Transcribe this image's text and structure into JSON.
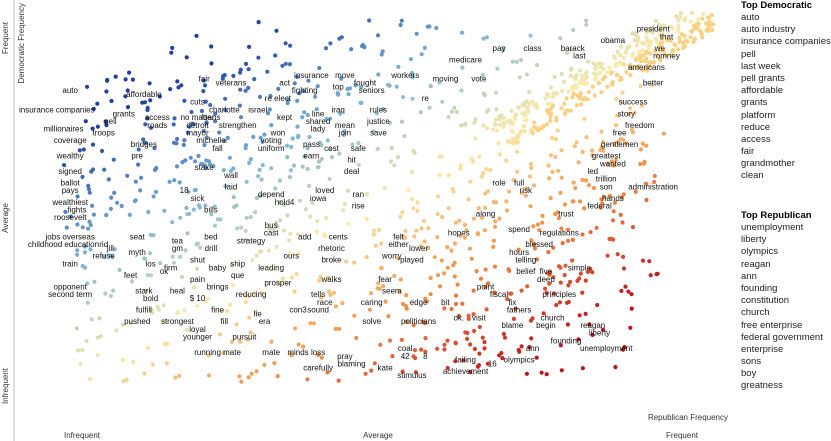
{
  "chart_data": {
    "type": "scatter",
    "xlabel": "Republican Frequency",
    "ylabel": "Democratic Frequency",
    "x_ticks": [
      "Infrequent",
      "Average",
      "Frequent"
    ],
    "y_ticks": [
      "Infrequent",
      "Average",
      "Frequent"
    ],
    "side_panel": {
      "democratic_title": "Top Democratic",
      "democratic_terms": [
        "auto",
        "auto industry",
        "insurance companies",
        "pell",
        "last week",
        "pell grants",
        "affordable",
        "grants",
        "platform",
        "reduce",
        "access",
        "fair",
        "grandmother",
        "clean"
      ],
      "republican_title": "Top Republican",
      "republican_terms": [
        "unemployment",
        "liberty",
        "olympics",
        "reagan",
        "ann",
        "founding",
        "constitution",
        "church",
        "free enterprise",
        "federal government",
        "enterprise",
        "sons",
        "boy",
        "greatness"
      ]
    },
    "labels": [
      {
        "t": "president",
        "x": 0.93,
        "y": 0.97
      },
      {
        "t": "that",
        "x": 0.95,
        "y": 0.95
      },
      {
        "t": "obama",
        "x": 0.87,
        "y": 0.94
      },
      {
        "t": "we",
        "x": 0.94,
        "y": 0.92
      },
      {
        "t": "barack",
        "x": 0.81,
        "y": 0.92
      },
      {
        "t": "last",
        "x": 0.82,
        "y": 0.9
      },
      {
        "t": "romney",
        "x": 0.95,
        "y": 0.9
      },
      {
        "t": "pay",
        "x": 0.7,
        "y": 0.92
      },
      {
        "t": "class",
        "x": 0.75,
        "y": 0.92
      },
      {
        "t": "medicare",
        "x": 0.65,
        "y": 0.89
      },
      {
        "t": "americans",
        "x": 0.92,
        "y": 0.87
      },
      {
        "t": "better",
        "x": 0.93,
        "y": 0.83
      },
      {
        "t": "moving",
        "x": 0.62,
        "y": 0.84
      },
      {
        "t": "vote",
        "x": 0.67,
        "y": 0.84
      },
      {
        "t": "workers",
        "x": 0.56,
        "y": 0.85
      },
      {
        "t": "fought",
        "x": 0.5,
        "y": 0.83
      },
      {
        "t": "seniors",
        "x": 0.51,
        "y": 0.81
      },
      {
        "t": "move",
        "x": 0.47,
        "y": 0.85
      },
      {
        "t": "insurance",
        "x": 0.42,
        "y": 0.85
      },
      {
        "t": "top",
        "x": 0.46,
        "y": 0.82
      },
      {
        "t": "re",
        "x": 0.59,
        "y": 0.79
      },
      {
        "t": "act",
        "x": 0.38,
        "y": 0.83
      },
      {
        "t": "fighting",
        "x": 0.41,
        "y": 0.81
      },
      {
        "t": "re elect",
        "x": 0.37,
        "y": 0.79
      },
      {
        "t": "fair",
        "x": 0.26,
        "y": 0.84
      },
      {
        "t": "veterans",
        "x": 0.3,
        "y": 0.83
      },
      {
        "t": "affordable",
        "x": 0.17,
        "y": 0.8
      },
      {
        "t": "cuts",
        "x": 0.25,
        "y": 0.78
      },
      {
        "t": "charlotte",
        "x": 0.29,
        "y": 0.76
      },
      {
        "t": "israel",
        "x": 0.34,
        "y": 0.76
      },
      {
        "t": "iraq",
        "x": 0.46,
        "y": 0.76
      },
      {
        "t": "rules",
        "x": 0.52,
        "y": 0.76
      },
      {
        "t": "line",
        "x": 0.43,
        "y": 0.75
      },
      {
        "t": "justice",
        "x": 0.52,
        "y": 0.73
      },
      {
        "t": "success",
        "x": 0.9,
        "y": 0.78
      },
      {
        "t": "story",
        "x": 0.89,
        "y": 0.75
      },
      {
        "t": "auto",
        "x": 0.06,
        "y": 0.81
      },
      {
        "t": "insurance companies",
        "x": 0.04,
        "y": 0.76
      },
      {
        "t": "grants",
        "x": 0.14,
        "y": 0.75
      },
      {
        "t": "pell",
        "x": 0.12,
        "y": 0.73
      },
      {
        "t": "access",
        "x": 0.19,
        "y": 0.74
      },
      {
        "t": "roads",
        "x": 0.19,
        "y": 0.72
      },
      {
        "t": "no matter",
        "x": 0.25,
        "y": 0.74
      },
      {
        "t": "loans",
        "x": 0.27,
        "y": 0.74
      },
      {
        "t": "detroit",
        "x": 0.25,
        "y": 0.72
      },
      {
        "t": "mayor",
        "x": 0.25,
        "y": 0.7
      },
      {
        "t": "strengthen",
        "x": 0.31,
        "y": 0.72
      },
      {
        "t": "kept",
        "x": 0.38,
        "y": 0.74
      },
      {
        "t": "shared",
        "x": 0.43,
        "y": 0.73
      },
      {
        "t": "lady",
        "x": 0.43,
        "y": 0.71
      },
      {
        "t": "join",
        "x": 0.47,
        "y": 0.7
      },
      {
        "t": "mean",
        "x": 0.47,
        "y": 0.72
      },
      {
        "t": "save",
        "x": 0.52,
        "y": 0.7
      },
      {
        "t": "freedom",
        "x": 0.91,
        "y": 0.72
      },
      {
        "t": "free",
        "x": 0.88,
        "y": 0.7
      },
      {
        "t": "gentlemen",
        "x": 0.88,
        "y": 0.67
      },
      {
        "t": "millionaires",
        "x": 0.05,
        "y": 0.71
      },
      {
        "t": "troops",
        "x": 0.11,
        "y": 0.7
      },
      {
        "t": "coverage",
        "x": 0.06,
        "y": 0.68
      },
      {
        "t": "bridges",
        "x": 0.17,
        "y": 0.67
      },
      {
        "t": "won",
        "x": 0.37,
        "y": 0.7
      },
      {
        "t": "voting",
        "x": 0.36,
        "y": 0.68
      },
      {
        "t": "uniform",
        "x": 0.36,
        "y": 0.66
      },
      {
        "t": "michelle",
        "x": 0.27,
        "y": 0.68
      },
      {
        "t": "fall",
        "x": 0.28,
        "y": 0.66
      },
      {
        "t": "pass",
        "x": 0.42,
        "y": 0.67
      },
      {
        "t": "cost",
        "x": 0.45,
        "y": 0.66
      },
      {
        "t": "safe",
        "x": 0.49,
        "y": 0.66
      },
      {
        "t": "wealthy",
        "x": 0.06,
        "y": 0.64
      },
      {
        "t": "pre",
        "x": 0.16,
        "y": 0.64
      },
      {
        "t": "earn",
        "x": 0.42,
        "y": 0.64
      },
      {
        "t": "greatest",
        "x": 0.86,
        "y": 0.64
      },
      {
        "t": "wanted",
        "x": 0.87,
        "y": 0.62
      },
      {
        "t": "signed",
        "x": 0.06,
        "y": 0.6
      },
      {
        "t": "stake",
        "x": 0.26,
        "y": 0.61
      },
      {
        "t": "hit",
        "x": 0.48,
        "y": 0.63
      },
      {
        "t": "deal",
        "x": 0.48,
        "y": 0.6
      },
      {
        "t": "led",
        "x": 0.84,
        "y": 0.6
      },
      {
        "t": "wall",
        "x": 0.3,
        "y": 0.59
      },
      {
        "t": "trillion",
        "x": 0.86,
        "y": 0.58
      },
      {
        "t": "ballot",
        "x": 0.06,
        "y": 0.57
      },
      {
        "t": "laid",
        "x": 0.3,
        "y": 0.56
      },
      {
        "t": "role",
        "x": 0.7,
        "y": 0.57
      },
      {
        "t": "full",
        "x": 0.73,
        "y": 0.57
      },
      {
        "t": "administration",
        "x": 0.93,
        "y": 0.56
      },
      {
        "t": "son",
        "x": 0.86,
        "y": 0.56
      },
      {
        "t": "pays",
        "x": 0.06,
        "y": 0.55
      },
      {
        "t": "18",
        "x": 0.23,
        "y": 0.55
      },
      {
        "t": "depend",
        "x": 0.36,
        "y": 0.54
      },
      {
        "t": "loved",
        "x": 0.44,
        "y": 0.55
      },
      {
        "t": "risk",
        "x": 0.74,
        "y": 0.55
      },
      {
        "t": "ran",
        "x": 0.49,
        "y": 0.54
      },
      {
        "t": "sick",
        "x": 0.25,
        "y": 0.53
      },
      {
        "t": "iowa",
        "x": 0.43,
        "y": 0.53
      },
      {
        "t": "hold4",
        "x": 0.38,
        "y": 0.52
      },
      {
        "t": "hands",
        "x": 0.87,
        "y": 0.53
      },
      {
        "t": "federal",
        "x": 0.85,
        "y": 0.51
      },
      {
        "t": "wealthiest",
        "x": 0.06,
        "y": 0.52
      },
      {
        "t": "rise",
        "x": 0.49,
        "y": 0.51
      },
      {
        "t": "fights",
        "x": 0.07,
        "y": 0.5
      },
      {
        "t": "bills",
        "x": 0.27,
        "y": 0.5
      },
      {
        "t": "trust",
        "x": 0.8,
        "y": 0.49
      },
      {
        "t": "roosevelt",
        "x": 0.06,
        "y": 0.48
      },
      {
        "t": "along",
        "x": 0.68,
        "y": 0.49
      },
      {
        "t": "bus",
        "x": 0.36,
        "y": 0.46
      },
      {
        "t": "spend",
        "x": 0.73,
        "y": 0.45
      },
      {
        "t": "regulations",
        "x": 0.79,
        "y": 0.44
      },
      {
        "t": "cast",
        "x": 0.36,
        "y": 0.44
      },
      {
        "t": "hopes",
        "x": 0.64,
        "y": 0.44
      },
      {
        "t": "seat",
        "x": 0.16,
        "y": 0.43
      },
      {
        "t": "add",
        "x": 0.41,
        "y": 0.43
      },
      {
        "t": "cents",
        "x": 0.46,
        "y": 0.43
      },
      {
        "t": "felt",
        "x": 0.55,
        "y": 0.43
      },
      {
        "t": "bed",
        "x": 0.27,
        "y": 0.43
      },
      {
        "t": "jobs overseas",
        "x": 0.06,
        "y": 0.43
      },
      {
        "t": "childhood education",
        "x": 0.05,
        "y": 0.41
      },
      {
        "t": "rid",
        "x": 0.11,
        "y": 0.41
      },
      {
        "t": "tea",
        "x": 0.22,
        "y": 0.42
      },
      {
        "t": "strategy",
        "x": 0.33,
        "y": 0.42
      },
      {
        "t": "either",
        "x": 0.55,
        "y": 0.41
      },
      {
        "t": "blessed",
        "x": 0.76,
        "y": 0.41
      },
      {
        "t": "gm",
        "x": 0.22,
        "y": 0.4
      },
      {
        "t": "drill",
        "x": 0.27,
        "y": 0.4
      },
      {
        "t": "lower",
        "x": 0.58,
        "y": 0.4
      },
      {
        "t": "rhetoric",
        "x": 0.45,
        "y": 0.4
      },
      {
        "t": "myth",
        "x": 0.16,
        "y": 0.39
      },
      {
        "t": "hours",
        "x": 0.73,
        "y": 0.39
      },
      {
        "t": "worry",
        "x": 0.54,
        "y": 0.38
      },
      {
        "t": "played",
        "x": 0.57,
        "y": 0.37
      },
      {
        "t": "ours",
        "x": 0.39,
        "y": 0.38
      },
      {
        "t": "broke",
        "x": 0.45,
        "y": 0.37
      },
      {
        "t": "shut",
        "x": 0.25,
        "y": 0.37
      },
      {
        "t": "telling",
        "x": 0.74,
        "y": 0.37
      },
      {
        "t": "los",
        "x": 0.18,
        "y": 0.36
      },
      {
        "t": "firm",
        "x": 0.21,
        "y": 0.35
      },
      {
        "t": "baby",
        "x": 0.28,
        "y": 0.35
      },
      {
        "t": "ship",
        "x": 0.31,
        "y": 0.36
      },
      {
        "t": "leading",
        "x": 0.36,
        "y": 0.35
      },
      {
        "t": "train",
        "x": 0.06,
        "y": 0.36
      },
      {
        "t": "feet",
        "x": 0.15,
        "y": 0.33
      },
      {
        "t": "ok",
        "x": 0.2,
        "y": 0.34
      },
      {
        "t": "five",
        "x": 0.77,
        "y": 0.34
      },
      {
        "t": "simple",
        "x": 0.82,
        "y": 0.35
      },
      {
        "t": "refuse",
        "x": 0.11,
        "y": 0.38
      },
      {
        "t": "jill",
        "x": 0.12,
        "y": 0.4
      },
      {
        "t": "que",
        "x": 0.31,
        "y": 0.33
      },
      {
        "t": "belief",
        "x": 0.74,
        "y": 0.34
      },
      {
        "t": "pain",
        "x": 0.25,
        "y": 0.32
      },
      {
        "t": "fear",
        "x": 0.53,
        "y": 0.32
      },
      {
        "t": "walks",
        "x": 0.45,
        "y": 0.32
      },
      {
        "t": "deep",
        "x": 0.77,
        "y": 0.32
      },
      {
        "t": "opponent",
        "x": 0.06,
        "y": 0.3
      },
      {
        "t": "second term",
        "x": 0.06,
        "y": 0.28
      },
      {
        "t": "brings",
        "x": 0.28,
        "y": 0.3
      },
      {
        "t": "prosper",
        "x": 0.37,
        "y": 0.31
      },
      {
        "t": "point",
        "x": 0.68,
        "y": 0.3
      },
      {
        "t": "stark",
        "x": 0.17,
        "y": 0.29
      },
      {
        "t": "heal",
        "x": 0.22,
        "y": 0.29
      },
      {
        "t": "seem",
        "x": 0.54,
        "y": 0.29
      },
      {
        "t": "fiscal",
        "x": 0.7,
        "y": 0.28
      },
      {
        "t": "bold",
        "x": 0.18,
        "y": 0.27
      },
      {
        "t": "tells",
        "x": 0.43,
        "y": 0.28
      },
      {
        "t": "reducing",
        "x": 0.33,
        "y": 0.28
      },
      {
        "t": "principles",
        "x": 0.79,
        "y": 0.28
      },
      {
        "t": "race",
        "x": 0.44,
        "y": 0.26
      },
      {
        "t": "edge",
        "x": 0.58,
        "y": 0.26
      },
      {
        "t": "fix",
        "x": 0.72,
        "y": 0.26
      },
      {
        "t": "$ 10",
        "x": 0.25,
        "y": 0.27
      },
      {
        "t": "fulfill",
        "x": 0.17,
        "y": 0.24
      },
      {
        "t": "caring",
        "x": 0.51,
        "y": 0.26
      },
      {
        "t": "sound",
        "x": 0.43,
        "y": 0.24
      },
      {
        "t": "bit",
        "x": 0.62,
        "y": 0.26
      },
      {
        "t": "fathers",
        "x": 0.73,
        "y": 0.24
      },
      {
        "t": "fine",
        "x": 0.28,
        "y": 0.24
      },
      {
        "t": "lie",
        "x": 0.34,
        "y": 0.23
      },
      {
        "t": "con3",
        "x": 0.4,
        "y": 0.24
      },
      {
        "t": "pushed",
        "x": 0.16,
        "y": 0.21
      },
      {
        "t": "strongest",
        "x": 0.22,
        "y": 0.21
      },
      {
        "t": "church",
        "x": 0.78,
        "y": 0.22
      },
      {
        "t": "ok.",
        "x": 0.64,
        "y": 0.22
      },
      {
        "t": "visit",
        "x": 0.67,
        "y": 0.22
      },
      {
        "t": "fill",
        "x": 0.29,
        "y": 0.21
      },
      {
        "t": "era",
        "x": 0.35,
        "y": 0.21
      },
      {
        "t": "politicians",
        "x": 0.58,
        "y": 0.21
      },
      {
        "t": "blame",
        "x": 0.72,
        "y": 0.2
      },
      {
        "t": "begin",
        "x": 0.77,
        "y": 0.2
      },
      {
        "t": "solve",
        "x": 0.51,
        "y": 0.21
      },
      {
        "t": "reagan",
        "x": 0.84,
        "y": 0.2
      },
      {
        "t": "loyal",
        "x": 0.25,
        "y": 0.19
      },
      {
        "t": "liberty",
        "x": 0.85,
        "y": 0.18
      },
      {
        "t": "younger",
        "x": 0.25,
        "y": 0.17
      },
      {
        "t": "pursuit",
        "x": 0.32,
        "y": 0.17
      },
      {
        "t": "founding",
        "x": 0.8,
        "y": 0.16
      },
      {
        "t": "running mate",
        "x": 0.28,
        "y": 0.13
      },
      {
        "t": "mate",
        "x": 0.36,
        "y": 0.13
      },
      {
        "t": "minds",
        "x": 0.4,
        "y": 0.13
      },
      {
        "t": "loss",
        "x": 0.43,
        "y": 0.13
      },
      {
        "t": "coal",
        "x": 0.56,
        "y": 0.14
      },
      {
        "t": "42",
        "x": 0.56,
        "y": 0.12
      },
      {
        "t": "ann",
        "x": 0.75,
        "y": 0.14
      },
      {
        "t": "unemployment",
        "x": 0.86,
        "y": 0.14
      },
      {
        "t": "pray",
        "x": 0.47,
        "y": 0.12
      },
      {
        "t": "8",
        "x": 0.59,
        "y": 0.12
      },
      {
        "t": "failing",
        "x": 0.65,
        "y": 0.11
      },
      {
        "t": "16",
        "x": 0.69,
        "y": 0.1
      },
      {
        "t": "olympics",
        "x": 0.73,
        "y": 0.11
      },
      {
        "t": "blaming",
        "x": 0.48,
        "y": 0.1
      },
      {
        "t": "carefully",
        "x": 0.43,
        "y": 0.09
      },
      {
        "t": "kate",
        "x": 0.53,
        "y": 0.09
      },
      {
        "t": "achievement",
        "x": 0.65,
        "y": 0.08
      },
      {
        "t": "stimulus",
        "x": 0.57,
        "y": 0.07
      }
    ]
  }
}
